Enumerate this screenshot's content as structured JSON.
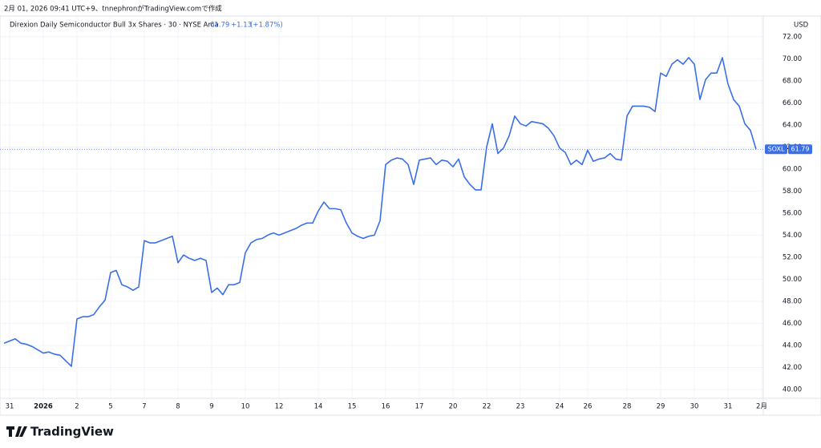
{
  "created": "2月 01, 2026 09:41 UTC+9、tnnephronがTradingView.comで作成",
  "brand": "TradingView",
  "chart_data": {
    "type": "line",
    "title": "Direxion Daily Semiconductor Bull 3x Shares · 30 · NYSE Arca",
    "symbol": "SOXL",
    "currency": "USD",
    "last_value": 61.79,
    "change": "+1.13",
    "change_pct": "(+1.87%)",
    "color": "#3a6fe8",
    "grid": true,
    "categories": [
      null,
      "31",
      null,
      null,
      null,
      null,
      null,
      "2026",
      null,
      null,
      null,
      null,
      null,
      "2",
      null,
      null,
      null,
      null,
      null,
      "5",
      null,
      null,
      null,
      null,
      null,
      "7",
      null,
      null,
      null,
      null,
      null,
      "8",
      null,
      null,
      null,
      null,
      null,
      "9",
      null,
      null,
      null,
      null,
      null,
      "10",
      null,
      null,
      null,
      null,
      null,
      "12",
      null,
      null,
      null,
      null,
      null,
      null,
      "14",
      null,
      null,
      null,
      null,
      null,
      "15",
      null,
      null,
      null,
      null,
      null,
      "16",
      null,
      null,
      null,
      null,
      null,
      "17",
      null,
      null,
      null,
      null,
      null,
      "20",
      null,
      null,
      null,
      null,
      null,
      "22",
      null,
      null,
      null,
      null,
      null,
      "23",
      null,
      null,
      null,
      null,
      null,
      null,
      "24",
      null,
      null,
      null,
      null,
      "26",
      null,
      null,
      null,
      null,
      null,
      null,
      "28",
      null,
      null,
      null,
      null,
      null,
      "29",
      null,
      null,
      null,
      null,
      null,
      "30",
      null,
      null,
      null,
      null,
      null,
      "31",
      null,
      null,
      null,
      null,
      null,
      "2月"
    ],
    "values": [
      44.2,
      44.4,
      44.6,
      44.2,
      44.1,
      43.9,
      43.6,
      43.3,
      43.4,
      43.2,
      43.1,
      42.6,
      42.1,
      46.4,
      46.6,
      46.6,
      46.8,
      47.5,
      48.1,
      50.6,
      50.8,
      49.5,
      49.3,
      49.0,
      49.3,
      53.5,
      53.3,
      53.3,
      53.5,
      53.7,
      53.9,
      51.5,
      52.2,
      51.9,
      51.7,
      51.9,
      51.7,
      48.8,
      49.2,
      48.6,
      49.5,
      49.5,
      49.7,
      52.4,
      53.3,
      53.6,
      53.7,
      54.0,
      54.2,
      54.0,
      54.2,
      54.4,
      54.6,
      54.9,
      55.1,
      55.1,
      56.2,
      57.0,
      56.4,
      56.4,
      56.3,
      55.1,
      54.2,
      53.9,
      53.7,
      53.9,
      54.0,
      55.3,
      60.4,
      60.8,
      61.0,
      60.9,
      60.4,
      58.6,
      60.8,
      60.9,
      61.0,
      60.4,
      60.8,
      60.7,
      60.2,
      60.9,
      59.3,
      58.6,
      58.1,
      58.1,
      62.0,
      64.1,
      61.4,
      61.9,
      63.0,
      64.8,
      64.1,
      63.9,
      64.3,
      64.2,
      64.1,
      63.7,
      63.0,
      61.9,
      61.5,
      60.4,
      60.8,
      60.4,
      61.7,
      60.7,
      60.9,
      61.0,
      61.4,
      60.9,
      60.8,
      64.8,
      65.7,
      65.7,
      65.7,
      65.6,
      65.2,
      68.7,
      68.4,
      69.5,
      69.9,
      69.5,
      70.1,
      69.5,
      66.3,
      68.1,
      68.7,
      68.7,
      70.1,
      67.7,
      66.3,
      65.7,
      64.1,
      63.5,
      61.79,
      null
    ],
    "ylim": [
      39.2,
      73.0
    ],
    "yticks": [
      {
        "value": 40,
        "label": "40.00"
      },
      {
        "value": 42,
        "label": "42.00"
      },
      {
        "value": 44,
        "label": "44.00"
      },
      {
        "value": 46,
        "label": "46.00"
      },
      {
        "value": 48,
        "label": "48.00"
      },
      {
        "value": 50,
        "label": "50.00"
      },
      {
        "value": 52,
        "label": "52.00"
      },
      {
        "value": 54,
        "label": "54.00"
      },
      {
        "value": 56,
        "label": "56.00"
      },
      {
        "value": 58,
        "label": "58.00"
      },
      {
        "value": 60,
        "label": "60.00"
      },
      {
        "value": 62,
        "label": "62.00"
      },
      {
        "value": 64,
        "label": "64.00"
      },
      {
        "value": 66,
        "label": "66.00"
      },
      {
        "value": 68,
        "label": "68.00"
      },
      {
        "value": 70,
        "label": "70.00"
      },
      {
        "value": 72,
        "label": "72.00"
      }
    ]
  }
}
